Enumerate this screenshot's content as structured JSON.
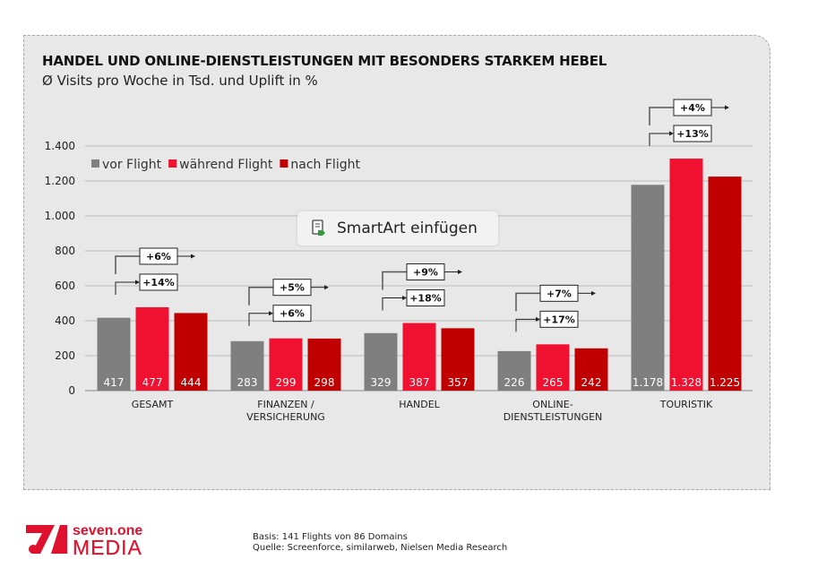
{
  "chart_data": {
    "type": "bar",
    "title": "HANDEL UND ONLINE-DIENSTLEISTUNGEN MIT BESONDERS STARKEM HEBEL",
    "subtitle": "Ø Visits pro Woche in Tsd. und Uplift in %",
    "categories": [
      [
        "GESAMT"
      ],
      [
        "FINANZEN /",
        "VERSICHERUNG"
      ],
      [
        "HANDEL"
      ],
      [
        "ONLINE-",
        "DIENSTLEISTUNGEN"
      ],
      [
        "TOURISTIK"
      ]
    ],
    "series": [
      {
        "name": "vor Flight",
        "color": "#7f7f7f",
        "values": [
          417,
          283,
          329,
          226,
          1178
        ],
        "labels": [
          "417",
          "283",
          "329",
          "226",
          "1.178"
        ]
      },
      {
        "name": "während Flight",
        "color": "#f0102f",
        "values": [
          477,
          299,
          387,
          265,
          1328
        ],
        "labels": [
          "477",
          "299",
          "387",
          "265",
          "1.328"
        ]
      },
      {
        "name": "nach Flight",
        "color": "#c00000",
        "values": [
          444,
          298,
          357,
          242,
          1225
        ],
        "labels": [
          "444",
          "298",
          "357",
          "242",
          "1.225"
        ]
      }
    ],
    "uplift_during": [
      "+14%",
      "+6%",
      "+18%",
      "+17%",
      "+13%"
    ],
    "uplift_after": [
      "+6%",
      "+5%",
      "+9%",
      "+7%",
      "+4%"
    ],
    "ylim": [
      0,
      1400
    ],
    "yticks": [
      0,
      200,
      400,
      600,
      800,
      1000,
      1200,
      1400
    ],
    "ytick_labels": [
      "0",
      "200",
      "400",
      "600",
      "800",
      "1.000",
      "1.200",
      "1.400"
    ],
    "grid": true,
    "legend_position": "top-left"
  },
  "overlay": {
    "smartart_label": "SmartArt einfügen",
    "icon": "smartart-icon"
  },
  "footer": {
    "basis": "Basis: 141 Flights von 86 Domains",
    "source": "Quelle: Screenforce, similarweb, Nielsen Media Research",
    "logo_text_top": "seven.one",
    "logo_text_bottom": "MEDIA",
    "brand_color": "#e0102f"
  }
}
